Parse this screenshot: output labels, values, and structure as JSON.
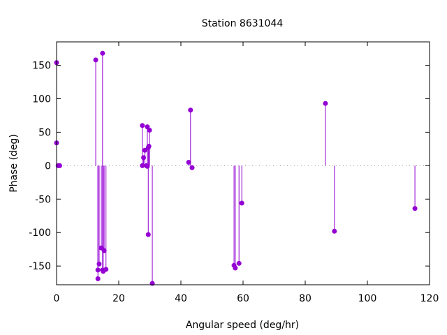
{
  "chart_data": {
    "type": "scatter",
    "style": "impulses-with-points",
    "title": "Station 8631044",
    "xlabel": "Angular speed (deg/hr)",
    "ylabel": "Phase (deg)",
    "xlim": [
      0,
      120
    ],
    "ylim": [
      -178,
      185
    ],
    "xticks": [
      0,
      20,
      40,
      60,
      80,
      100,
      120
    ],
    "yticks": [
      -150,
      -100,
      -50,
      0,
      50,
      100,
      150
    ],
    "color": "#9400d3",
    "zero_line": true,
    "points": [
      [
        0,
        154
      ],
      [
        0,
        34
      ],
      [
        0.5,
        0
      ],
      [
        1.0,
        0
      ],
      [
        12.6,
        158
      ],
      [
        14.8,
        168
      ],
      [
        13.3,
        -169
      ],
      [
        13.3,
        -156
      ],
      [
        13.7,
        -147
      ],
      [
        14.4,
        -123
      ],
      [
        14.8,
        -156
      ],
      [
        15.0,
        -158
      ],
      [
        15.3,
        -127
      ],
      [
        15.9,
        -155
      ],
      [
        27.6,
        60
      ],
      [
        27.6,
        0
      ],
      [
        28.0,
        12
      ],
      [
        28.4,
        23
      ],
      [
        28.9,
        0
      ],
      [
        29.2,
        58
      ],
      [
        29.5,
        27
      ],
      [
        29.9,
        53
      ],
      [
        29.2,
        -1
      ],
      [
        29.7,
        29
      ],
      [
        29.5,
        -103
      ],
      [
        30.8,
        -176
      ],
      [
        42.5,
        5
      ],
      [
        43.1,
        83
      ],
      [
        43.6,
        -3
      ],
      [
        57.1,
        -149
      ],
      [
        57.5,
        -153
      ],
      [
        58.7,
        -146
      ],
      [
        59.6,
        -56
      ],
      [
        86.5,
        93
      ],
      [
        89.4,
        -98
      ],
      [
        115.3,
        -64
      ]
    ]
  }
}
